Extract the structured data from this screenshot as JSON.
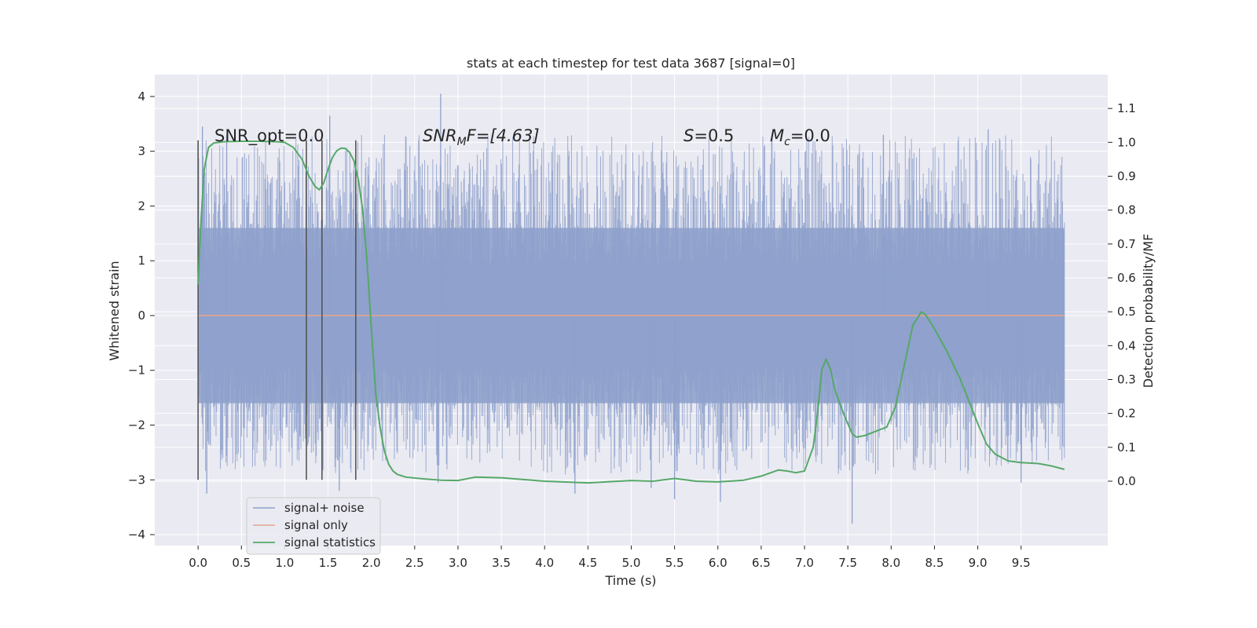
{
  "chart_data": {
    "type": "line",
    "title": "stats at each timestep for test data 3687 [signal=0]",
    "xlabel": "Time (s)",
    "ylabel_left": "Whitened strain",
    "ylabel_right": "Detection probability/MF",
    "xlim": [
      -0.5,
      10.5
    ],
    "ylim_left": [
      -4.2,
      4.4
    ],
    "ylim_right": [
      -0.19,
      1.2
    ],
    "x_ticks": [
      "0.0",
      "0.5",
      "1.0",
      "1.5",
      "2.0",
      "2.5",
      "3.0",
      "3.5",
      "4.0",
      "4.5",
      "5.0",
      "5.5",
      "6.0",
      "6.5",
      "7.0",
      "7.5",
      "8.0",
      "8.5",
      "9.0",
      "9.5"
    ],
    "y_ticks_left": [
      "4",
      "3",
      "2",
      "1",
      "0",
      "−1",
      "−2",
      "−3",
      "−4"
    ],
    "y_ticks_right": [
      "1.1",
      "1.0",
      "0.9",
      "0.8",
      "0.7",
      "0.6",
      "0.5",
      "0.4",
      "0.3",
      "0.2",
      "0.1",
      "0.0"
    ],
    "grid": true,
    "legend_position": "lower-left",
    "annotations": {
      "snr_opt": "SNR_opt=0.0",
      "snr_mf_base": "SNR",
      "snr_mf_sub": "M",
      "snr_mf_rest": "F=[4.63]",
      "s_var": "S",
      "s_rest": "=0.5",
      "mc_base": "M",
      "mc_sub": "c",
      "mc_rest": "=0.0"
    },
    "vertical_lines_x": [
      0.0,
      1.25,
      1.43,
      1.82
    ],
    "vertical_lines_range": [
      -3.0,
      3.2
    ],
    "series": [
      {
        "name": "signal+ noise",
        "color": "#8da0cb",
        "kind": "noise",
        "x_range": [
          0.0,
          10.0
        ],
        "core_band": [
          -1.6,
          1.6
        ],
        "typical_extremes": [
          -2.9,
          3.3
        ],
        "spikes": [
          {
            "x": 0.05,
            "y": 3.45
          },
          {
            "x": 0.1,
            "y": -3.25
          },
          {
            "x": 0.33,
            "y": 3.3
          },
          {
            "x": 1.52,
            "y": 3.65
          },
          {
            "x": 1.63,
            "y": -3.2
          },
          {
            "x": 2.8,
            "y": 4.05
          },
          {
            "x": 2.77,
            "y": -3.05
          },
          {
            "x": 4.35,
            "y": -3.25
          },
          {
            "x": 5.23,
            "y": -3.15
          },
          {
            "x": 5.5,
            "y": -3.35
          },
          {
            "x": 6.03,
            "y": -3.4
          },
          {
            "x": 7.55,
            "y": -3.8
          },
          {
            "x": 9.5,
            "y": -3.05
          },
          {
            "x": 9.12,
            "y": 3.4
          },
          {
            "x": 7.91,
            "y": 3.3
          }
        ]
      },
      {
        "name": "signal only",
        "color": "#e5a58f",
        "x": [
          0.0,
          10.0
        ],
        "y": [
          0.0,
          0.0
        ]
      },
      {
        "name": "signal statistics",
        "color": "#55a868",
        "axis": "right",
        "x": [
          0.0,
          0.03,
          0.07,
          0.12,
          0.18,
          0.3,
          0.5,
          0.7,
          0.9,
          1.0,
          1.1,
          1.2,
          1.28,
          1.35,
          1.4,
          1.45,
          1.5,
          1.55,
          1.6,
          1.65,
          1.7,
          1.75,
          1.8,
          1.85,
          1.9,
          1.95,
          2.0,
          2.05,
          2.1,
          2.15,
          2.2,
          2.25,
          2.3,
          2.4,
          2.6,
          2.8,
          3.0,
          3.2,
          3.5,
          4.0,
          4.5,
          5.0,
          5.25,
          5.5,
          5.75,
          6.0,
          6.3,
          6.5,
          6.7,
          6.8,
          6.9,
          7.0,
          7.1,
          7.15,
          7.2,
          7.25,
          7.3,
          7.35,
          7.45,
          7.55,
          7.6,
          7.7,
          7.85,
          7.95,
          8.05,
          8.15,
          8.25,
          8.35,
          8.4,
          8.5,
          8.65,
          8.8,
          9.0,
          9.1,
          9.2,
          9.35,
          9.5,
          9.7,
          9.85,
          10.0
        ],
        "y": [
          0.58,
          0.75,
          0.92,
          0.985,
          0.998,
          1.002,
          1.003,
          1.003,
          1.002,
          1.0,
          0.985,
          0.95,
          0.9,
          0.87,
          0.86,
          0.88,
          0.92,
          0.955,
          0.975,
          0.983,
          0.982,
          0.97,
          0.945,
          0.89,
          0.8,
          0.65,
          0.45,
          0.26,
          0.16,
          0.09,
          0.05,
          0.03,
          0.02,
          0.012,
          0.007,
          0.003,
          0.002,
          0.012,
          0.01,
          0.0,
          -0.005,
          0.002,
          0.0,
          0.008,
          0.0,
          -0.002,
          0.003,
          0.015,
          0.033,
          0.03,
          0.025,
          0.03,
          0.1,
          0.2,
          0.33,
          0.36,
          0.33,
          0.27,
          0.2,
          0.14,
          0.13,
          0.135,
          0.15,
          0.16,
          0.22,
          0.34,
          0.46,
          0.5,
          0.49,
          0.45,
          0.38,
          0.3,
          0.17,
          0.11,
          0.08,
          0.06,
          0.055,
          0.052,
          0.045,
          0.035
        ]
      }
    ]
  }
}
